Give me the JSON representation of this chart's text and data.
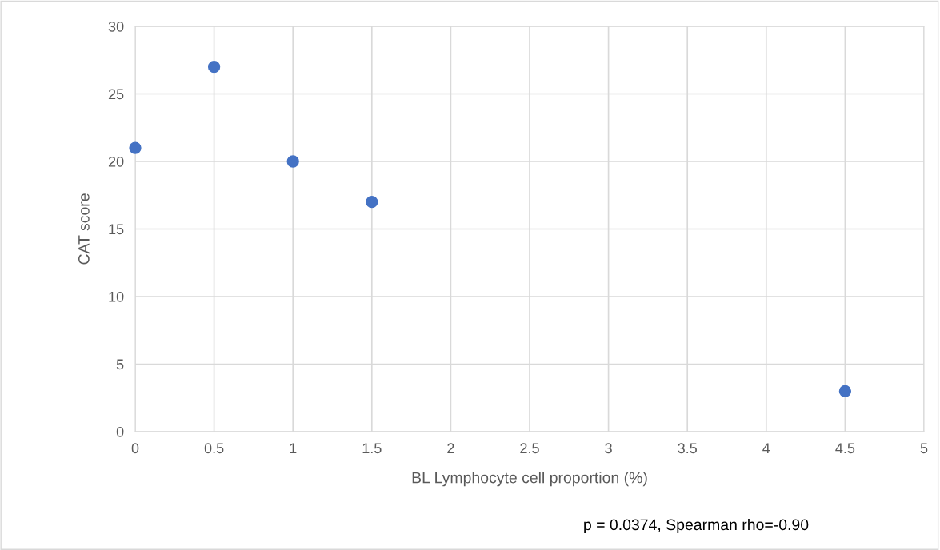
{
  "chart_data": {
    "type": "scatter",
    "xlabel": "BL Lymphocyte cell proportion (%)",
    "ylabel": "CAT score",
    "x": [
      0,
      0.5,
      1,
      1.5,
      4.5
    ],
    "values": [
      21,
      27,
      20,
      17,
      3
    ],
    "color": "#4472c4",
    "marker": "circle",
    "xlim": [
      0,
      5
    ],
    "xticks": [
      0,
      0.5,
      1,
      1.5,
      2,
      2.5,
      3,
      3.5,
      4,
      4.5,
      5
    ],
    "ylim": [
      0,
      30
    ],
    "yticks": [
      0,
      5,
      10,
      15,
      20,
      25,
      30
    ],
    "grid": true,
    "legend": false,
    "annotations": [
      "p = 0.0374, Spearman rho=-0.90"
    ]
  }
}
